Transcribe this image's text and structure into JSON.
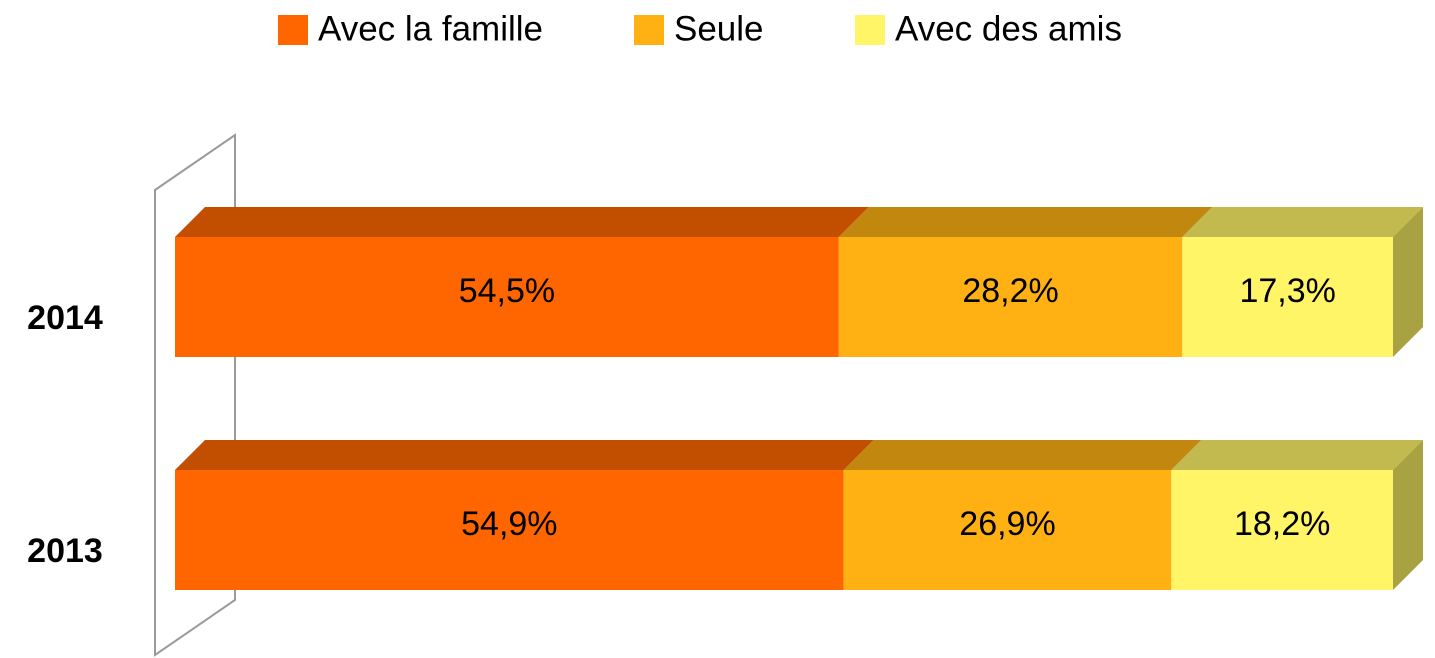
{
  "chart_data": {
    "type": "stacked-bar-3d",
    "categories": [
      "2014",
      "2013"
    ],
    "series": [
      {
        "name": "Avec la famille",
        "color": "#ff6600",
        "values": [
          54.5,
          54.9
        ],
        "value_labels": [
          "54,5%",
          "54,9%"
        ]
      },
      {
        "name": "Seule",
        "color": "#ffb114",
        "values": [
          28.2,
          26.9
        ],
        "value_labels": [
          "28,2%",
          "26,9%"
        ]
      },
      {
        "name": "Avec des amis",
        "color": "#fff566",
        "values": [
          17.3,
          18.2
        ],
        "value_labels": [
          "17,3%",
          "18,2%"
        ]
      }
    ],
    "legend": "top"
  }
}
